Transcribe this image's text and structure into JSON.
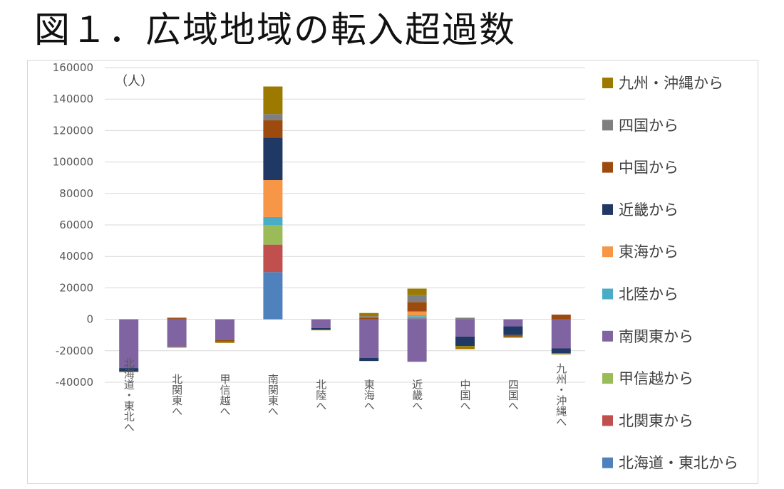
{
  "page": {
    "title": "図１．広域地域の転入超過数"
  },
  "chart_data": {
    "type": "bar",
    "stacked": true,
    "title": "",
    "unit_label": "（人）",
    "ylim": [
      -40000,
      160000
    ],
    "yticks": [
      160000,
      140000,
      120000,
      100000,
      80000,
      60000,
      40000,
      20000,
      0,
      -20000,
      -40000
    ],
    "grid": true,
    "legend_position": "right",
    "categories": [
      "北海道・東北へ",
      "北関東へ",
      "甲信越へ",
      "南関東へ",
      "北陸へ",
      "東海へ",
      "近畿へ",
      "中国へ",
      "四国へ",
      "九州・沖縄へ"
    ],
    "series": [
      {
        "name": "北海道・東北から",
        "color": "#4F81BD",
        "values": [
          0,
          0,
          0,
          30000,
          0,
          0,
          600,
          0,
          0,
          0
        ]
      },
      {
        "name": "北関東から",
        "color": "#C0504D",
        "values": [
          0,
          0,
          0,
          17500,
          0,
          0,
          500,
          0,
          0,
          0
        ]
      },
      {
        "name": "甲信越から",
        "color": "#9BBB59",
        "values": [
          0,
          0,
          0,
          12500,
          0,
          0,
          600,
          0,
          0,
          0
        ]
      },
      {
        "name": "南関東から",
        "color": "#8064A2",
        "values": [
          -31000,
          -17500,
          -13000,
          0,
          -5500,
          -24500,
          -27000,
          -11000,
          -4500,
          -18500
        ]
      },
      {
        "name": "北陸から",
        "color": "#4BACC6",
        "values": [
          0,
          0,
          0,
          5000,
          0,
          0,
          800,
          0,
          0,
          0
        ]
      },
      {
        "name": "東海から",
        "color": "#F79646",
        "values": [
          0,
          0,
          0,
          23500,
          0,
          0,
          2500,
          0,
          0,
          0
        ]
      },
      {
        "name": "近畿から",
        "color": "#1F3864",
        "values": [
          -2000,
          0,
          0,
          27000,
          -1000,
          -2000,
          0,
          -6000,
          -5500,
          -3000
        ]
      },
      {
        "name": "中国から",
        "color": "#9C4A0E",
        "values": [
          0,
          700,
          -1000,
          11000,
          0,
          1000,
          6000,
          0,
          -1000,
          3000
        ]
      },
      {
        "name": "四国から",
        "color": "#7F7F7F",
        "values": [
          0,
          400,
          0,
          4000,
          0,
          1000,
          4500,
          1000,
          0,
          0
        ]
      },
      {
        "name": "九州・沖縄から",
        "color": "#9C7A00",
        "values": [
          -600,
          -500,
          -1000,
          17500,
          -500,
          2000,
          4000,
          -2000,
          -700,
          -800
        ]
      }
    ],
    "legend_order": [
      "九州・沖縄から",
      "四国から",
      "中国から",
      "近畿から",
      "東海から",
      "北陸から",
      "南関東から",
      "甲信越から",
      "北関東から",
      "北海道・東北から"
    ]
  }
}
